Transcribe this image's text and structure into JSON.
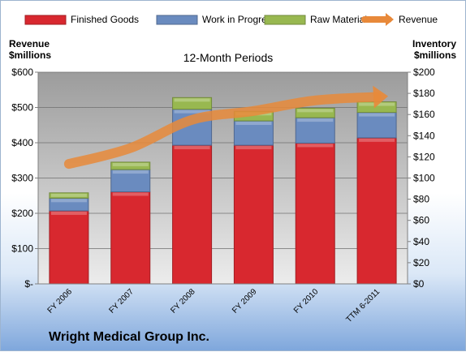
{
  "chart_data": {
    "type": "bar",
    "subtitle": "12-Month Periods",
    "company": "Wright Medical Group Inc.",
    "categories": [
      "FY 2006",
      "FY 2007",
      "FY 2008",
      "FY 2009",
      "FY 2010",
      "TTM 6-2011"
    ],
    "left_axis": {
      "title_line1": "Revenue",
      "title_line2": "$millions",
      "ylim": [
        0,
        600
      ],
      "ticks": [
        {
          "value": 0,
          "label": "$-"
        },
        {
          "value": 100,
          "label": "$100"
        },
        {
          "value": 200,
          "label": "$200"
        },
        {
          "value": 300,
          "label": "$300"
        },
        {
          "value": 400,
          "label": "$400"
        },
        {
          "value": 500,
          "label": "$500"
        },
        {
          "value": 600,
          "label": "$600"
        }
      ]
    },
    "right_axis": {
      "title_line1": "Inventory",
      "title_line2": "$millions",
      "ylim": [
        0,
        200
      ],
      "ticks": [
        {
          "value": 0,
          "label": "$0"
        },
        {
          "value": 20,
          "label": "$20"
        },
        {
          "value": 40,
          "label": "$40"
        },
        {
          "value": 60,
          "label": "$60"
        },
        {
          "value": 80,
          "label": "$80"
        },
        {
          "value": 100,
          "label": "$100"
        },
        {
          "value": 120,
          "label": "$120"
        },
        {
          "value": 140,
          "label": "$140"
        },
        {
          "value": 160,
          "label": "$160"
        },
        {
          "value": 180,
          "label": "$180"
        },
        {
          "value": 200,
          "label": "$200"
        }
      ]
    },
    "grid": true,
    "legend_position": "top",
    "series": [
      {
        "name": "Finished Goods",
        "axis": "right",
        "color": "#d8282f",
        "values": [
          69,
          87,
          131,
          131,
          133,
          138
        ]
      },
      {
        "name": "Work in Progress",
        "axis": "right",
        "color": "#6a8bbf",
        "values": [
          12,
          21,
          34,
          23,
          24,
          24
        ]
      },
      {
        "name": "Raw Materials",
        "axis": "right",
        "color": "#98b850",
        "values": [
          5,
          7,
          11,
          9,
          9,
          10
        ]
      },
      {
        "name": "Revenue",
        "axis": "left",
        "type": "line",
        "color": "#e8893a",
        "values": [
          340,
          385,
          465,
          490,
          520,
          530
        ]
      }
    ]
  }
}
